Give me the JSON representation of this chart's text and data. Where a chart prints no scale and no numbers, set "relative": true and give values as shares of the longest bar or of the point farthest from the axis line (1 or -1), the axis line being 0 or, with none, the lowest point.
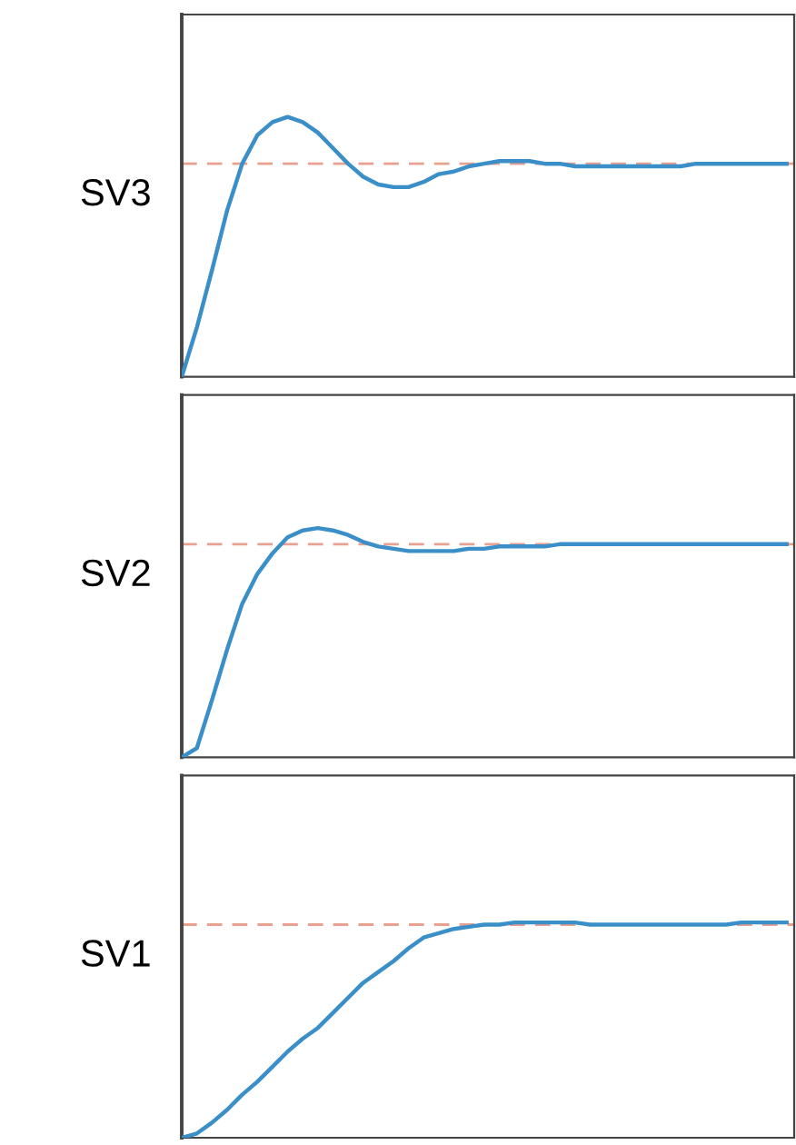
{
  "chart_data": [
    {
      "type": "line",
      "ylabel": "SV3",
      "relative": true,
      "categories": [
        null,
        null,
        null,
        null,
        null,
        null,
        null,
        null,
        null,
        null,
        null,
        null,
        null,
        null,
        null,
        null,
        null,
        null,
        null,
        null,
        null,
        null,
        null,
        null,
        null,
        null,
        null,
        null,
        null,
        null,
        null,
        null,
        null,
        null,
        null,
        null,
        null,
        null,
        null,
        null,
        null
      ],
      "series": [
        {
          "color": "#3b8fc8",
          "values": [
            0,
            0.19,
            0.41,
            0.64,
            0.82,
            0.93,
            0.98,
            1,
            0.98,
            0.94,
            0.88,
            0.82,
            0.77,
            0.74,
            0.73,
            0.73,
            0.75,
            0.78,
            0.79,
            0.81,
            0.82,
            0.83,
            0.83,
            0.83,
            0.82,
            0.82,
            0.81,
            0.81,
            0.81,
            0.81,
            0.81,
            0.81,
            0.81,
            0.81,
            0.82,
            0.82,
            0.82,
            0.82,
            0.82,
            0.82,
            0.82
          ]
        }
      ],
      "ref_lines": [
        {
          "axis": "y",
          "value": 0.82,
          "color": "#e8a090",
          "line_style": "dashed"
        }
      ]
    },
    {
      "type": "line",
      "ylabel": "SV2",
      "relative": true,
      "categories": [
        null,
        null,
        null,
        null,
        null,
        null,
        null,
        null,
        null,
        null,
        null,
        null,
        null,
        null,
        null,
        null,
        null,
        null,
        null,
        null,
        null,
        null,
        null,
        null,
        null,
        null,
        null,
        null,
        null,
        null,
        null,
        null,
        null,
        null,
        null,
        null,
        null,
        null,
        null,
        null,
        null
      ],
      "series": [
        {
          "color": "#3b8fc8",
          "values": [
            0,
            0.04,
            0.25,
            0.47,
            0.67,
            0.8,
            0.89,
            0.96,
            0.99,
            1,
            0.99,
            0.97,
            0.94,
            0.92,
            0.91,
            0.9,
            0.9,
            0.9,
            0.9,
            0.91,
            0.91,
            0.92,
            0.92,
            0.92,
            0.92,
            0.93,
            0.93,
            0.93,
            0.93,
            0.93,
            0.93,
            0.93,
            0.93,
            0.93,
            0.93,
            0.93,
            0.93,
            0.93,
            0.93,
            0.93,
            0.93
          ]
        }
      ],
      "ref_lines": [
        {
          "axis": "y",
          "value": 0.93,
          "color": "#e8a090",
          "line_style": "dashed"
        }
      ]
    },
    {
      "type": "line",
      "ylabel": "SV1",
      "relative": true,
      "categories": [
        null,
        null,
        null,
        null,
        null,
        null,
        null,
        null,
        null,
        null,
        null,
        null,
        null,
        null,
        null,
        null,
        null,
        null,
        null,
        null,
        null,
        null,
        null,
        null,
        null,
        null,
        null,
        null,
        null,
        null,
        null,
        null,
        null,
        null,
        null,
        null,
        null,
        null,
        null,
        null,
        null
      ],
      "series": [
        {
          "color": "#3b8fc8",
          "values": [
            0,
            0.02,
            0.07,
            0.13,
            0.2,
            0.26,
            0.33,
            0.4,
            0.46,
            0.51,
            0.58,
            0.65,
            0.72,
            0.77,
            0.82,
            0.88,
            0.93,
            0.95,
            0.97,
            0.98,
            0.99,
            0.99,
            1,
            1,
            1,
            1,
            1,
            0.99,
            0.99,
            0.99,
            0.99,
            0.99,
            0.99,
            0.99,
            0.99,
            0.99,
            0.99,
            1,
            1,
            1,
            1
          ]
        }
      ],
      "ref_lines": [
        {
          "axis": "y",
          "value": 0.99,
          "color": "#e8a090",
          "line_style": "dashed"
        }
      ]
    }
  ]
}
